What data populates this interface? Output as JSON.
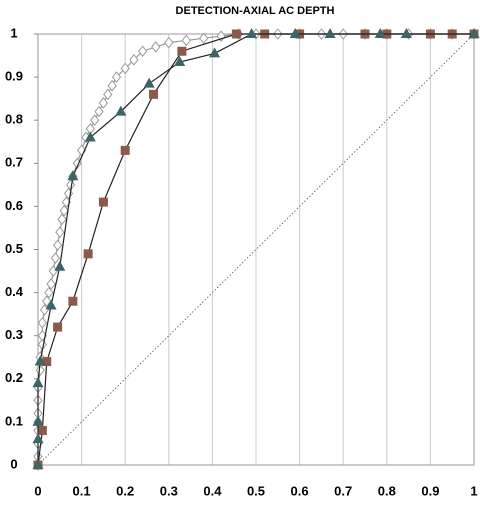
{
  "chart_data": {
    "type": "scatter",
    "title": "DETECTION-AXIAL AC DEPTH",
    "xlim": [
      0,
      1
    ],
    "ylim": [
      0,
      1
    ],
    "xticks": [
      0,
      0.1,
      0.2,
      0.3,
      0.4,
      0.5,
      0.6,
      0.7,
      0.8,
      0.9,
      1
    ],
    "yticks": [
      0,
      0.1,
      0.2,
      0.3,
      0.4,
      0.5,
      0.6,
      0.7,
      0.8,
      0.9,
      1
    ],
    "grid": true,
    "series": [
      {
        "marker": "dotted-line",
        "color": "#555555",
        "x": [
          0,
          1
        ],
        "values": [
          0,
          1
        ]
      },
      {
        "marker": "diamond",
        "color": "#9a9a9a",
        "x": [
          0,
          0,
          0,
          0,
          0,
          0,
          0,
          0,
          0.005,
          0.005,
          0.01,
          0.01,
          0.01,
          0.015,
          0.02,
          0.025,
          0.03,
          0.035,
          0.04,
          0.045,
          0.05,
          0.055,
          0.06,
          0.065,
          0.07,
          0.075,
          0.08,
          0.09,
          0.1,
          0.11,
          0.12,
          0.13,
          0.14,
          0.15,
          0.16,
          0.17,
          0.18,
          0.2,
          0.22,
          0.24,
          0.27,
          0.3,
          0.34,
          0.38,
          0.42,
          0.46,
          0.5,
          0.55,
          0.6,
          0.65,
          0.7,
          0.75,
          0.8,
          0.85,
          0.9,
          0.95,
          1
        ],
        "values": [
          0,
          0.02,
          0.05,
          0.08,
          0.1,
          0.12,
          0.15,
          0.18,
          0.22,
          0.25,
          0.28,
          0.3,
          0.33,
          0.36,
          0.38,
          0.4,
          0.42,
          0.45,
          0.48,
          0.51,
          0.54,
          0.57,
          0.59,
          0.61,
          0.63,
          0.65,
          0.67,
          0.7,
          0.73,
          0.76,
          0.78,
          0.8,
          0.82,
          0.84,
          0.86,
          0.88,
          0.9,
          0.92,
          0.94,
          0.96,
          0.97,
          0.98,
          0.985,
          0.99,
          0.995,
          1,
          1,
          1,
          1,
          1,
          1,
          1,
          1,
          1,
          1,
          1,
          1
        ]
      },
      {
        "marker": "square",
        "color": "#8b5a4a",
        "x": [
          0,
          0.01,
          0.02,
          0.045,
          0.08,
          0.115,
          0.15,
          0.2,
          0.265,
          0.33,
          0.455,
          0.52,
          0.6,
          0.75,
          0.8,
          0.9,
          0.95,
          1
        ],
        "values": [
          0,
          0.08,
          0.24,
          0.32,
          0.38,
          0.49,
          0.61,
          0.73,
          0.86,
          0.96,
          1,
          1,
          1,
          1,
          1,
          1,
          1,
          1
        ]
      },
      {
        "marker": "triangle",
        "color": "#3d6466",
        "x": [
          0,
          0,
          0,
          0,
          0.005,
          0.03,
          0.05,
          0.08,
          0.12,
          0.19,
          0.255,
          0.325,
          0.405,
          0.49,
          0.59,
          0.67,
          0.785,
          0.845,
          1
        ],
        "values": [
          0,
          0.06,
          0.1,
          0.19,
          0.24,
          0.37,
          0.46,
          0.67,
          0.76,
          0.82,
          0.885,
          0.935,
          0.955,
          1,
          1,
          1,
          1,
          1,
          1
        ]
      }
    ]
  }
}
